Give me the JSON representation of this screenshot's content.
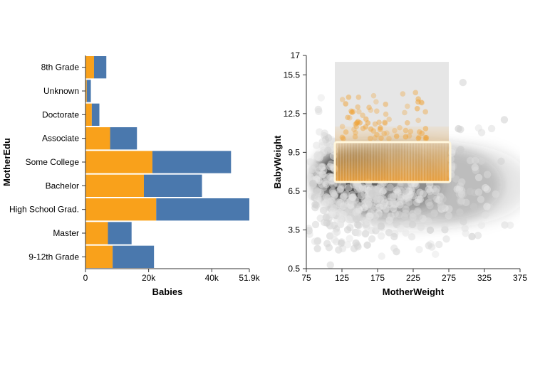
{
  "chart_data": [
    {
      "type": "bar",
      "orientation": "horizontal",
      "stacked": true,
      "xlabel": "Babies",
      "ylabel": "MotherEdu",
      "xlim": [
        0,
        51900
      ],
      "x_ticks": [
        "0",
        "20k",
        "40k",
        "51.9k"
      ],
      "x_tick_values": [
        0,
        20000,
        40000,
        51900
      ],
      "categories": [
        "8th Grade",
        "Unknown",
        "Doctorate",
        "Associate",
        "Some College",
        "Bachelor",
        "High School Grad.",
        "Master",
        "9-12th Grade"
      ],
      "series": [
        {
          "color": "#f9a11b",
          "values": [
            2700,
            400,
            2000,
            7800,
            21200,
            18500,
            22400,
            7100,
            8600
          ]
        },
        {
          "color": "#4a78ad",
          "values": [
            3900,
            1300,
            2400,
            8500,
            24900,
            18400,
            29500,
            7500,
            13100
          ]
        }
      ],
      "totals": [
        6600,
        1700,
        4400,
        16300,
        46100,
        36900,
        51900,
        14600,
        21700
      ],
      "grid": false
    },
    {
      "type": "scatter",
      "style": "hexbin density",
      "xlabel": "MotherWeight",
      "ylabel": "BabyWeight",
      "xlim": [
        75,
        375
      ],
      "ylim": [
        0.5,
        17
      ],
      "x_ticks": [
        75,
        125,
        175,
        225,
        275,
        325,
        375
      ],
      "y_ticks": [
        0.5,
        3.5,
        6.5,
        9.5,
        12.5,
        15.5,
        17
      ],
      "density_color": "#9a9a9a",
      "selection_color": "#f0a030",
      "brush": {
        "x": [
          115,
          275
        ],
        "y": [
          7.2,
          16.5
        ]
      },
      "brush_fill": "#e6e6e6",
      "brush_outline": "#fff6dc",
      "grid": false
    }
  ]
}
